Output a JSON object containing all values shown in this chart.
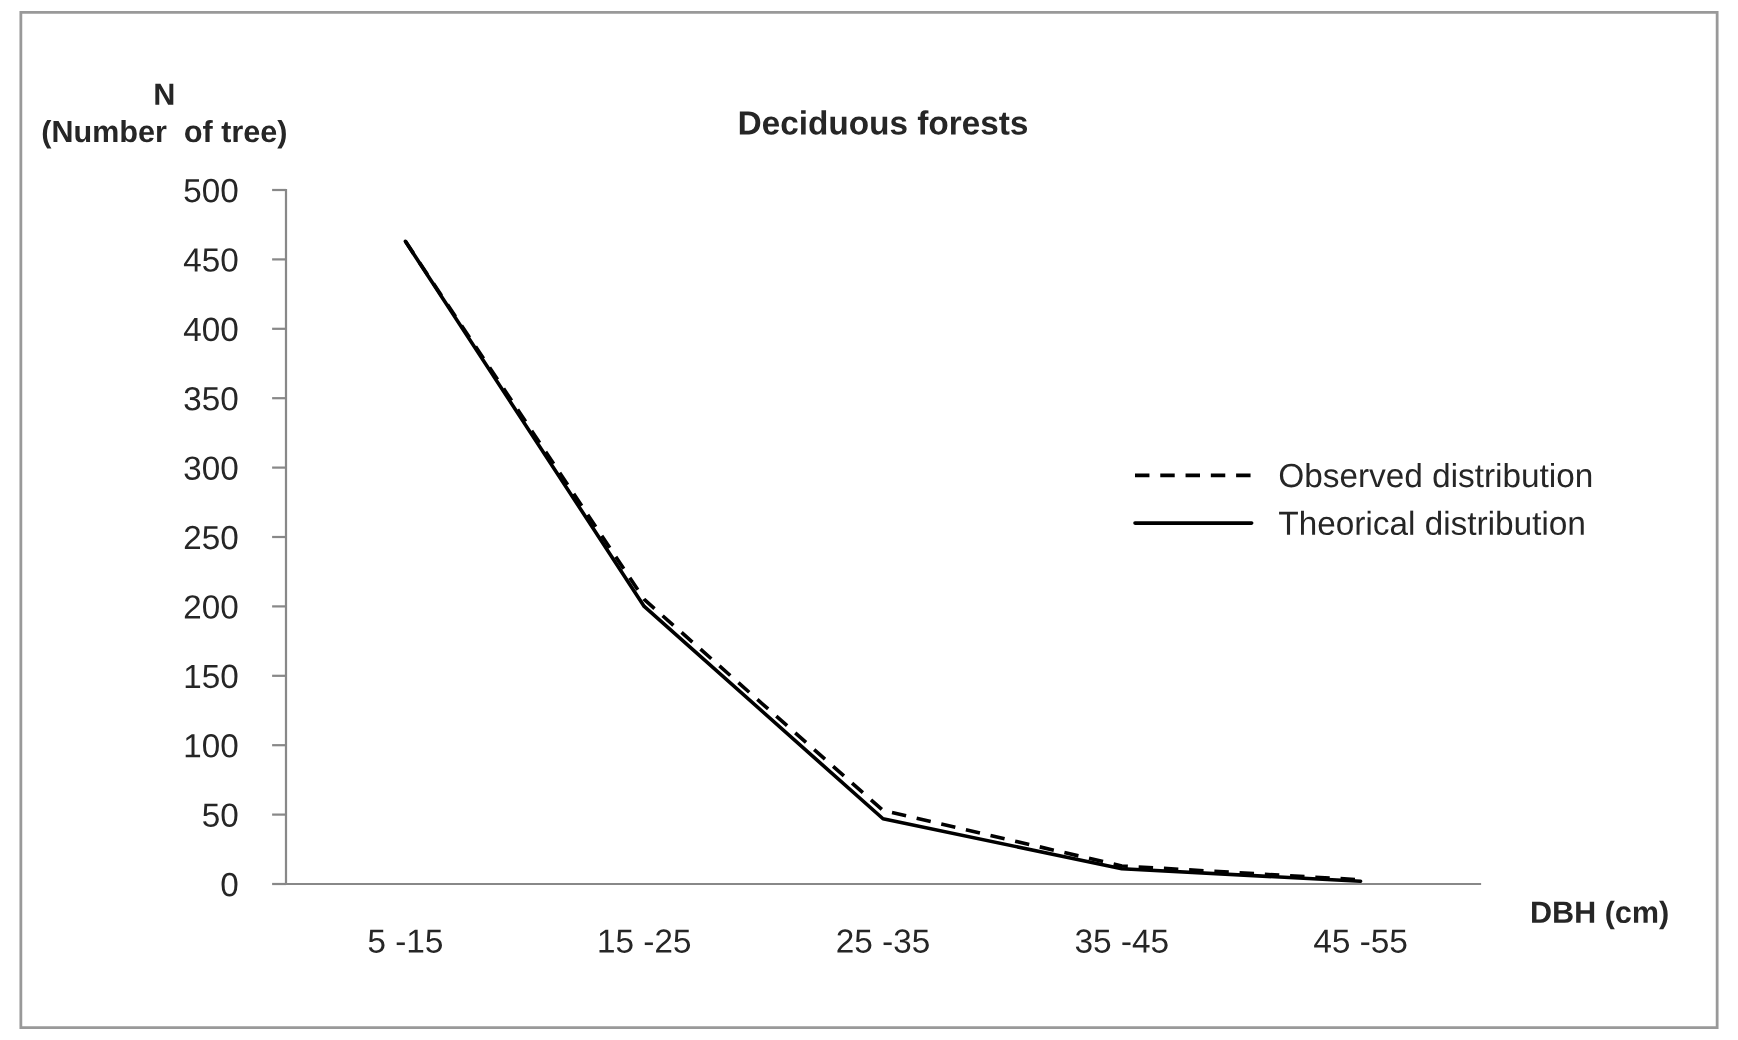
{
  "chart_data": {
    "type": "line",
    "title": "Deciduous forests",
    "xlabel": "DBH (cm)",
    "ylabel": "N\n(Number  of tree)",
    "categories": [
      "5 -15",
      "15 -25",
      "25 -35",
      "35 -45",
      "45 -55"
    ],
    "series": [
      {
        "name": "Observed distribution",
        "color": "#000000",
        "line_style": "dashed",
        "values": [
          463,
          205,
          53,
          13,
          3
        ]
      },
      {
        "name": "Theorical distribution",
        "color": "#000000",
        "line_style": "solid",
        "values": [
          463,
          200,
          47,
          11,
          2
        ]
      }
    ],
    "ylim": [
      0,
      500
    ],
    "yticks": [
      0,
      50,
      100,
      150,
      200,
      250,
      300,
      350,
      400,
      450,
      500
    ],
    "legend": "right",
    "marker": "none",
    "grid": false
  }
}
